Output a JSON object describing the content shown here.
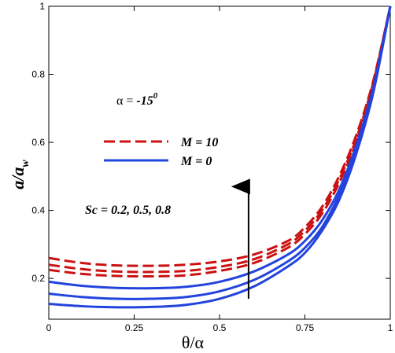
{
  "chart_data": {
    "type": "line",
    "xlabel": "θ/α",
    "ylabel_main": "a/a",
    "ylabel_sub": "w",
    "xlim": [
      0,
      1
    ],
    "ylim": [
      0.08,
      1.0
    ],
    "x_ticks": [
      0,
      0.25,
      0.5,
      0.75,
      1
    ],
    "x_tick_labels": [
      "0",
      "0.25",
      "0.5",
      "0.75",
      "1"
    ],
    "y_ticks": [
      0.2,
      0.4,
      0.6,
      0.8,
      1.0
    ],
    "y_tick_labels": [
      "0.2",
      "0.4",
      "0.6",
      "0.8",
      "1"
    ],
    "grid": false,
    "legend_position": "upper-left",
    "annotations": {
      "alpha_prefix": "α = ",
      "alpha_value": "-15",
      "alpha_sup": "0",
      "sc_text": "Sc = 0.2, 0.5, 0.8"
    },
    "arrow": {
      "x": 0.585,
      "y_from": 0.14,
      "y_to": 0.47
    },
    "colors": {
      "m10": "#cc1111",
      "m0": "#2244dd"
    },
    "x": [
      0,
      0.1,
      0.2,
      0.3,
      0.4,
      0.5,
      0.6,
      0.7,
      0.75,
      0.8,
      0.85,
      0.9,
      0.95,
      1.0
    ],
    "series": [
      {
        "name": "M = 10",
        "group": "m10",
        "style": "dashed",
        "values": [
          0.26,
          0.245,
          0.238,
          0.237,
          0.24,
          0.25,
          0.27,
          0.31,
          0.35,
          0.41,
          0.5,
          0.62,
          0.78,
          1.0
        ]
      },
      {
        "group": "m10",
        "style": "dashed",
        "values": [
          0.24,
          0.227,
          0.22,
          0.219,
          0.222,
          0.234,
          0.256,
          0.3,
          0.34,
          0.4,
          0.49,
          0.61,
          0.775,
          1.0
        ]
      },
      {
        "group": "m10",
        "style": "dashed",
        "values": [
          0.225,
          0.213,
          0.207,
          0.206,
          0.209,
          0.222,
          0.245,
          0.29,
          0.33,
          0.39,
          0.48,
          0.6,
          0.77,
          1.0
        ]
      },
      {
        "name": "M = 0",
        "group": "m0",
        "style": "solid",
        "values": [
          0.19,
          0.178,
          0.172,
          0.171,
          0.175,
          0.19,
          0.22,
          0.27,
          0.31,
          0.37,
          0.46,
          0.59,
          0.76,
          1.0
        ]
      },
      {
        "group": "m0",
        "style": "solid",
        "values": [
          0.155,
          0.145,
          0.14,
          0.14,
          0.145,
          0.162,
          0.195,
          0.25,
          0.29,
          0.35,
          0.445,
          0.575,
          0.75,
          1.0
        ]
      },
      {
        "group": "m0",
        "style": "solid",
        "values": [
          0.125,
          0.118,
          0.115,
          0.116,
          0.122,
          0.14,
          0.176,
          0.235,
          0.275,
          0.34,
          0.43,
          0.565,
          0.745,
          1.0
        ]
      }
    ]
  }
}
